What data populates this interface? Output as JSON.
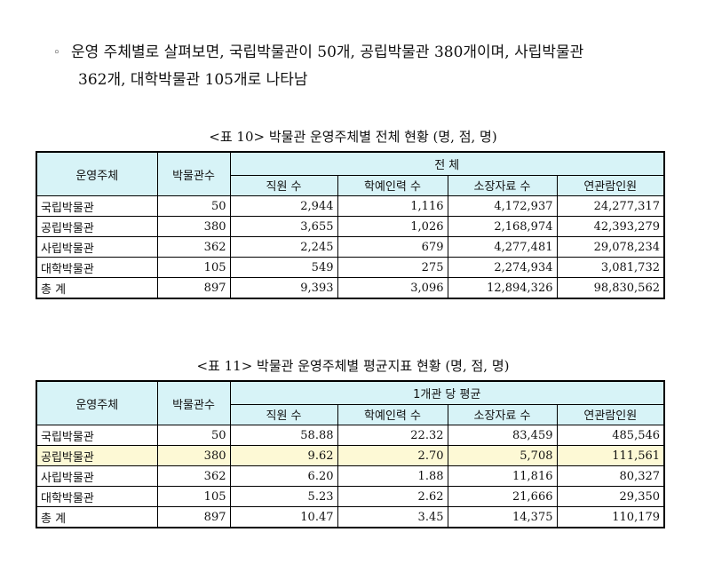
{
  "intro": {
    "bullet": "◦",
    "line1": "운영 주체별로 살펴보면, 국립박물관이 50개, 공립박물관 380개이며, 사립박물관",
    "line2": "362개, 대학박물관 105개로 나타남"
  },
  "table10": {
    "caption": "<표 10> 박물관 운영주체별 전체 현황 (명, 점, 명)",
    "h_owner": "운영주체",
    "h_count": "박물관수",
    "h_group": "전 체",
    "h_cols": [
      "직원 수",
      "학예인력 수",
      "소장자료 수",
      "연관람인원"
    ],
    "rows": [
      {
        "name": "국립박물관",
        "count": "50",
        "v": [
          "2,944",
          "1,116",
          "4,172,937",
          "24,277,317"
        ]
      },
      {
        "name": "공립박물관",
        "count": "380",
        "v": [
          "3,655",
          "1,026",
          "2,168,974",
          "42,393,279"
        ]
      },
      {
        "name": "사립박물관",
        "count": "362",
        "v": [
          "2,245",
          "679",
          "4,277,481",
          "29,078,234"
        ]
      },
      {
        "name": "대학박물관",
        "count": "105",
        "v": [
          "549",
          "275",
          "2,274,934",
          "3,081,732"
        ]
      },
      {
        "name": "총 계",
        "count": "897",
        "v": [
          "9,393",
          "3,096",
          "12,894,326",
          "98,830,562"
        ]
      }
    ]
  },
  "table11": {
    "caption": "<표 11> 박물관 운영주체별 평균지표 현황 (명, 점, 명)",
    "h_owner": "운영주체",
    "h_count": "박물관수",
    "h_group": "1개관 당 평균",
    "h_cols": [
      "직원 수",
      "학예인력 수",
      "소장자료 수",
      "연관람인원"
    ],
    "rows": [
      {
        "name": "국립박물관",
        "count": "50",
        "v": [
          "58.88",
          "22.32",
          "83,459",
          "485,546"
        ]
      },
      {
        "name": "공립박물관",
        "count": "380",
        "v": [
          "9.62",
          "2.70",
          "5,708",
          "111,561"
        ]
      },
      {
        "name": "사립박물관",
        "count": "362",
        "v": [
          "6.20",
          "1.88",
          "11,816",
          "80,327"
        ]
      },
      {
        "name": "대학박물관",
        "count": "105",
        "v": [
          "5.23",
          "2.62",
          "21,666",
          "29,350"
        ]
      },
      {
        "name": "총 계",
        "count": "897",
        "v": [
          "10.47",
          "3.45",
          "14,375",
          "110,179"
        ]
      }
    ]
  }
}
